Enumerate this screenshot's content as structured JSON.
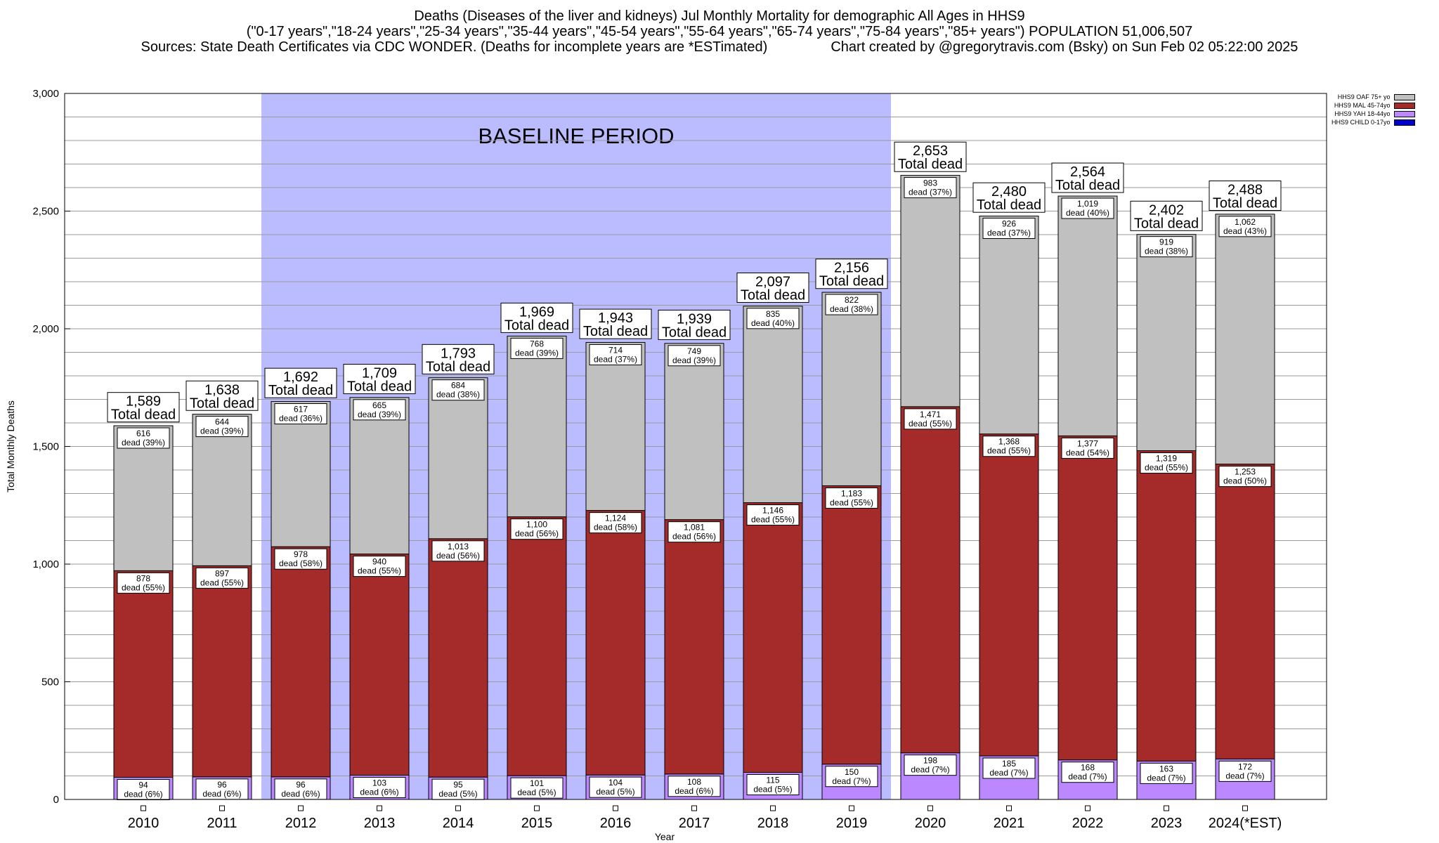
{
  "title": {
    "line1": "Deaths (Diseases of the liver and kidneys) Jul Monthly Mortality for demographic All Ages in HHS9",
    "line2": "(\"0-17 years\",\"18-24 years\",\"25-34 years\",\"35-44 years\",\"45-54 years\",\"55-64 years\",\"65-74 years\",\"75-84 years\",\"85+ years\") POPULATION 51,006,507",
    "line3_left": "Sources: State Death Certificates via CDC WONDER. (Deaths for incomplete years are *ESTimated)",
    "line3_right": "Chart created by @gregorytravis.com (Bsky) on Sun Feb 02 05:22:00 2025"
  },
  "chart_data": {
    "type": "bar",
    "stacked": true,
    "xlabel": "Year",
    "ylabel": "Total Monthly Deaths",
    "ylim": [
      0,
      3000
    ],
    "yticks": [
      0,
      500,
      1000,
      1500,
      2000,
      2500,
      3000
    ],
    "ytick_labels": [
      "0",
      "500",
      "1,000",
      "1,500",
      "2,000",
      "2,500",
      "3,000"
    ],
    "grid": true,
    "legend_position": "top-right",
    "categories": [
      "2010",
      "2011",
      "2012",
      "2013",
      "2014",
      "2015",
      "2016",
      "2017",
      "2018",
      "2019",
      "2020",
      "2021",
      "2022",
      "2023",
      "2024(*EST)"
    ],
    "baseline_band": {
      "label": "BASELINE PERIOD",
      "from": "2012",
      "to": "2019",
      "color": "#bbbbff"
    },
    "total_label_suffix": "Total dead",
    "totals": [
      1589,
      1638,
      1692,
      1709,
      1793,
      1969,
      1943,
      1939,
      2097,
      2156,
      2653,
      2480,
      2564,
      2402,
      2488
    ],
    "totals_text": [
      "1,589",
      "1,638",
      "1,692",
      "1,709",
      "1,793",
      "1,969",
      "1,943",
      "1,939",
      "2,097",
      "2,156",
      "2,653",
      "2,480",
      "2,564",
      "2,402",
      "2,488"
    ],
    "series": [
      {
        "name": "HHS9 CHILD 0-17yo",
        "color": "#0000cc",
        "values": [
          0,
          0,
          0,
          0,
          0,
          0,
          0,
          0,
          0,
          0,
          0,
          0,
          0,
          0,
          0
        ]
      },
      {
        "name": "HHS9 YAH 18-44yo",
        "color": "#bb88ff",
        "values": [
          94,
          96,
          96,
          103,
          95,
          101,
          104,
          108,
          115,
          150,
          198,
          185,
          168,
          163,
          172
        ],
        "labels": [
          [
            "94",
            "dead (6%)"
          ],
          [
            "96",
            "dead (6%)"
          ],
          [
            "96",
            "dead (6%)"
          ],
          [
            "103",
            "dead (6%)"
          ],
          [
            "95",
            "dead (5%)"
          ],
          [
            "101",
            "dead (5%)"
          ],
          [
            "104",
            "dead (5%)"
          ],
          [
            "108",
            "dead (6%)"
          ],
          [
            "115",
            "dead (5%)"
          ],
          [
            "150",
            "dead (7%)"
          ],
          [
            "198",
            "dead (7%)"
          ],
          [
            "185",
            "dead (7%)"
          ],
          [
            "168",
            "dead (7%)"
          ],
          [
            "163",
            "dead (7%)"
          ],
          [
            "172",
            "dead (7%)"
          ]
        ]
      },
      {
        "name": "HHS9 MAL 45-74yo",
        "color": "#a52a2a",
        "values": [
          878,
          897,
          978,
          940,
          1013,
          1100,
          1124,
          1081,
          1146,
          1183,
          1471,
          1368,
          1377,
          1319,
          1253
        ],
        "labels": [
          [
            "878",
            "dead (55%)"
          ],
          [
            "897",
            "dead (55%)"
          ],
          [
            "978",
            "dead (58%)"
          ],
          [
            "940",
            "dead (55%)"
          ],
          [
            "1,013",
            "dead (56%)"
          ],
          [
            "1,100",
            "dead (56%)"
          ],
          [
            "1,124",
            "dead (58%)"
          ],
          [
            "1,081",
            "dead (56%)"
          ],
          [
            "1,146",
            "dead (55%)"
          ],
          [
            "1,183",
            "dead (55%)"
          ],
          [
            "1,471",
            "dead (55%)"
          ],
          [
            "1,368",
            "dead (55%)"
          ],
          [
            "1,377",
            "dead (54%)"
          ],
          [
            "1,319",
            "dead (55%)"
          ],
          [
            "1,253",
            "dead (50%)"
          ]
        ]
      },
      {
        "name": "HHS9 OAF 75+ yo",
        "color": "#c0c0c0",
        "values": [
          616,
          644,
          617,
          665,
          684,
          768,
          714,
          749,
          835,
          822,
          983,
          926,
          1019,
          919,
          1062
        ],
        "labels": [
          [
            "616",
            "dead (39%)"
          ],
          [
            "644",
            "dead (39%)"
          ],
          [
            "617",
            "dead (36%)"
          ],
          [
            "665",
            "dead (39%)"
          ],
          [
            "684",
            "dead (38%)"
          ],
          [
            "768",
            "dead (39%)"
          ],
          [
            "714",
            "dead (37%)"
          ],
          [
            "749",
            "dead (39%)"
          ],
          [
            "835",
            "dead (40%)"
          ],
          [
            "822",
            "dead (38%)"
          ],
          [
            "983",
            "dead (37%)"
          ],
          [
            "926",
            "dead (37%)"
          ],
          [
            "1,019",
            "dead (40%)"
          ],
          [
            "919",
            "dead (38%)"
          ],
          [
            "1,062",
            "dead (43%)"
          ]
        ]
      }
    ],
    "legend_order": [
      "HHS9 OAF 75+ yo",
      "HHS9 MAL 45-74yo",
      "HHS9 YAH 18-44yo",
      "HHS9 CHILD 0-17yo"
    ]
  }
}
